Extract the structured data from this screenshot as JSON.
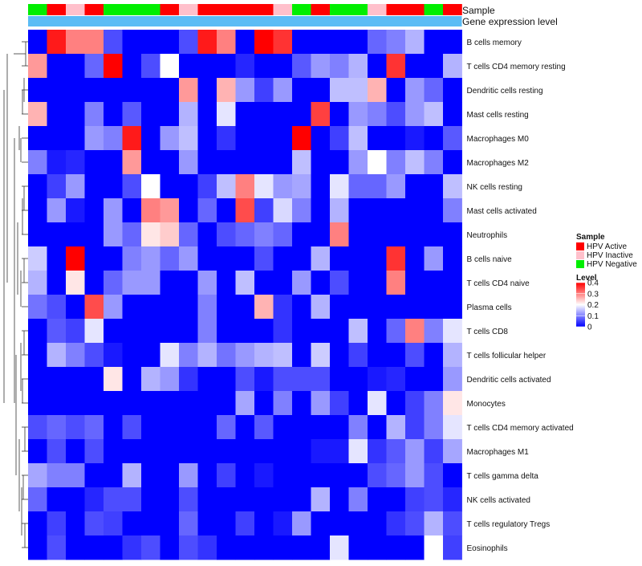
{
  "chart_data": {
    "type": "heatmap",
    "title": "",
    "annotation_tracks": [
      {
        "name": "Sample",
        "label": "Sample"
      },
      {
        "name": "Gene expression level",
        "label": "Gene expression level",
        "color": "#5bbcf5"
      }
    ],
    "sample_groups": [
      "HPV Negative",
      "HPV Active",
      "HPV Inactive",
      "HPV Active",
      "HPV Negative",
      "HPV Negative",
      "HPV Negative",
      "HPV Active",
      "HPV Inactive",
      "HPV Active",
      "HPV Active",
      "HPV Active",
      "HPV Active",
      "HPV Inactive",
      "HPV Negative",
      "HPV Active",
      "HPV Negative",
      "HPV Negative",
      "HPV Inactive",
      "HPV Active",
      "HPV Active",
      "HPV Negative",
      "HPV Active"
    ],
    "group_colors": {
      "HPV Active": "#ff0000",
      "HPV Inactive": "#ffc0cb",
      "HPV Negative": "#00ee00"
    },
    "rows": [
      "B cells memory",
      "T cells CD4 memory resting",
      "Dendritic cells resting",
      "Mast cells resting",
      "Macrophages M0",
      "Macrophages M2",
      "NK cells resting",
      "Mast cells activated",
      "Neutrophils",
      "B cells naive",
      "T cells CD4 naive",
      "Plasma cells",
      "T cells CD8",
      "T cells follicular helper",
      "Dendritic cells activated",
      "Monocytes",
      "T cells CD4 memory activated",
      "Macrophages M1",
      "T cells gamma delta",
      "NK cells activated",
      "T cells regulatory  Tregs",
      "Eosinophils"
    ],
    "values": [
      [
        0,
        0.38,
        0.3,
        0.3,
        0.06,
        0,
        0,
        0,
        0.06,
        0.38,
        0.3,
        0,
        0.4,
        0.36,
        0,
        0,
        0,
        0,
        0.08,
        0.1,
        0.14,
        0,
        0
      ],
      [
        0.28,
        0,
        0,
        0.08,
        0.4,
        0,
        0.06,
        0.2,
        0,
        0,
        0,
        0.03,
        0,
        0,
        0.07,
        0.12,
        0.1,
        0.14,
        0,
        0.36,
        0,
        0,
        0.14
      ],
      [
        0,
        0,
        0,
        0,
        0,
        0,
        0,
        0,
        0.28,
        0,
        0.26,
        0.12,
        0.05,
        0.12,
        0,
        0,
        0.15,
        0.15,
        0.26,
        0,
        0.12,
        0.08,
        0
      ],
      [
        0.26,
        0,
        0,
        0.1,
        0,
        0.07,
        0,
        0,
        0.14,
        0,
        0.18,
        0,
        0,
        0,
        0,
        0.35,
        0,
        0.12,
        0.1,
        0.06,
        0.12,
        0.15,
        0
      ],
      [
        0,
        0,
        0,
        0.12,
        0.1,
        0.38,
        0,
        0.12,
        0.15,
        0,
        0.04,
        0,
        0,
        0,
        0.42,
        0,
        0.05,
        0.15,
        0,
        0,
        0.02,
        0,
        0.07
      ],
      [
        0.1,
        0.02,
        0.03,
        0,
        0,
        0.28,
        0,
        0,
        0.12,
        0,
        0,
        0,
        0,
        0,
        0.15,
        0,
        0,
        0.12,
        0.2,
        0.1,
        0.15,
        0.1,
        0
      ],
      [
        0,
        0.05,
        0.12,
        0,
        0,
        0.06,
        0.2,
        0,
        0,
        0.05,
        0.15,
        0.3,
        0.18,
        0.12,
        0.13,
        0,
        0.18,
        0.08,
        0.08,
        0.12,
        0,
        0,
        0.15
      ],
      [
        0,
        0.12,
        0.02,
        0,
        0.12,
        0,
        0.3,
        0.28,
        0,
        0.08,
        0,
        0.34,
        0.05,
        0.17,
        0.1,
        0,
        0.14,
        0,
        0,
        0,
        0,
        0,
        0.1
      ],
      [
        0,
        0,
        0,
        0,
        0.12,
        0.08,
        0.22,
        0.24,
        0.08,
        0,
        0.06,
        0.08,
        0.1,
        0.08,
        0,
        0,
        0.3,
        0,
        0,
        0,
        0,
        0,
        0
      ],
      [
        0.16,
        0,
        0.42,
        0,
        0,
        0.1,
        0.12,
        0.08,
        0.12,
        0,
        0,
        0,
        0.06,
        0,
        0,
        0.14,
        0,
        0,
        0,
        0.36,
        0,
        0.12,
        0
      ],
      [
        0.14,
        0,
        0.22,
        0,
        0.08,
        0.12,
        0.12,
        0,
        0,
        0.12,
        0,
        0.15,
        0,
        0,
        0.12,
        0,
        0.06,
        0,
        0,
        0.3,
        0,
        0,
        0
      ],
      [
        0.09,
        0.06,
        0,
        0.34,
        0.12,
        0,
        0,
        0,
        0,
        0.1,
        0,
        0,
        0.26,
        0.04,
        0,
        0.14,
        0,
        0,
        0,
        0,
        0,
        0,
        0
      ],
      [
        0,
        0.07,
        0.05,
        0.18,
        0,
        0,
        0,
        0,
        0,
        0.1,
        0,
        0,
        0,
        0.04,
        0,
        0,
        0,
        0.15,
        0,
        0.08,
        0.3,
        0.1,
        0.18
      ],
      [
        0,
        0.14,
        0.1,
        0.06,
        0.02,
        0,
        0,
        0.18,
        0.1,
        0.14,
        0.09,
        0.12,
        0.14,
        0.15,
        0,
        0.16,
        0,
        0.05,
        0,
        0,
        0.06,
        0,
        0.14
      ],
      [
        0,
        0,
        0,
        0,
        0.22,
        0,
        0.14,
        0.12,
        0.04,
        0,
        0,
        0.06,
        0.02,
        0.06,
        0.06,
        0.06,
        0,
        0,
        0.02,
        0.03,
        0,
        0,
        0.12
      ],
      [
        0,
        0,
        0,
        0,
        0,
        0,
        0,
        0,
        0,
        0,
        0,
        0.13,
        0,
        0.1,
        0,
        0.12,
        0.05,
        0,
        0.18,
        0,
        0.05,
        0.1,
        0.22
      ],
      [
        0.06,
        0.08,
        0.06,
        0.08,
        0,
        0.06,
        0,
        0,
        0,
        0,
        0.08,
        0,
        0.07,
        0,
        0,
        0,
        0,
        0.1,
        0,
        0.14,
        0.05,
        0.1,
        0.18
      ],
      [
        0,
        0.06,
        0,
        0.06,
        0,
        0,
        0,
        0,
        0,
        0,
        0,
        0,
        0,
        0,
        0,
        0.02,
        0.02,
        0.18,
        0.04,
        0.07,
        0.12,
        0.05,
        0.13
      ],
      [
        0.13,
        0.1,
        0.1,
        0,
        0,
        0.14,
        0,
        0,
        0.12,
        0,
        0.05,
        0,
        0.02,
        0,
        0,
        0,
        0,
        0,
        0.06,
        0.08,
        0.12,
        0.06,
        0
      ],
      [
        0.08,
        0,
        0,
        0.03,
        0.06,
        0.06,
        0,
        0,
        0.06,
        0,
        0,
        0,
        0,
        0,
        0,
        0.14,
        0,
        0.1,
        0,
        0,
        0.05,
        0.06,
        0.03
      ],
      [
        0,
        0.05,
        0,
        0.06,
        0.05,
        0,
        0,
        0,
        0.08,
        0,
        0,
        0.05,
        0,
        0.02,
        0.12,
        0,
        0,
        0,
        0,
        0.04,
        0.06,
        0.14,
        0.06
      ],
      [
        0,
        0.06,
        0,
        0,
        0,
        0.04,
        0.06,
        0,
        0.06,
        0.04,
        0,
        0,
        0,
        0,
        0,
        0,
        0.18,
        0,
        0,
        0,
        0,
        0.2,
        0.05
      ]
    ],
    "color_scale": {
      "min": 0,
      "max": 0.4,
      "low": "#0000ff",
      "mid": "#ffffff",
      "high": "#ff0000",
      "mid_value": 0.2
    },
    "legend_sample": {
      "title": "Sample",
      "items": [
        "HPV Active",
        "HPV Inactive",
        "HPV Negative"
      ]
    },
    "legend_level": {
      "title": "Level",
      "ticks": [
        "0",
        "0.1",
        "0.2",
        "0.3",
        "0.4"
      ]
    }
  }
}
